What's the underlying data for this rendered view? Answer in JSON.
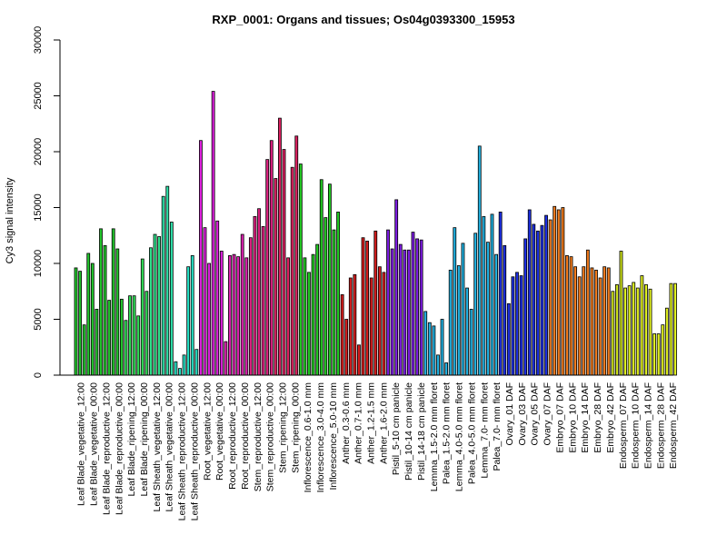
{
  "chart_data": {
    "type": "bar",
    "title": "RXP_0001: Organs and tissues; Os04g0393300_15953",
    "xlabel": "",
    "ylabel": "Cy3 signal intensity",
    "ylim": [
      0,
      30000
    ],
    "yticks": [
      0,
      5000,
      10000,
      15000,
      20000,
      25000,
      30000
    ],
    "grid": false,
    "legend": "none",
    "labeled_categories": [
      "Leaf Blade_vegetative_12:00",
      "Leaf Blade_vegetative_00:00",
      "Leaf Blade_reproductive_12:00",
      "Leaf Blade_reproductive_00:00",
      "Leaf Blade_ripening_12:00",
      "Leaf Blade_ripening_00:00",
      "Leaf Sheath_vegetative_12:00",
      "Leaf Sheath_vegetative_00:00",
      "Leaf Sheath_reproductive_12:00",
      "Leaf Sheath_reproductive_00:00",
      "Root_vegetative_12:00",
      "Root_vegetative_00:00",
      "Root_reproductive_12:00",
      "Root_reproductive_00:00",
      "Stem_reproductive_12:00",
      "Stem_reproductive_00:00",
      "Stem_ripening_12:00",
      "Stem_ripening_00:00",
      "Inflorescence_0.6-1.0 mm",
      "Inflorescence_3.0-4.0 mm",
      "Inflorescence_5.0-10 mm",
      "Anther_0.3-0.6 mm",
      "Anther_0.7-1.0 mm",
      "Anther_1.2-1.5 mm",
      "Anther_1.6-2.0 mm",
      "Pistil_5-10 cm panicle",
      "Pistil_10-14 cm panicle",
      "Pistil_14-18 cm panicle",
      "Lemma_1.5-2.0 mm floret",
      "Palea_1.5-2.0 mm floret",
      "Lemma_4.0-5.0 mm floret",
      "Palea_4.0-5.0 mm floret",
      "Lemma_7.0- mm floret",
      "Palea_7.0- mm floret",
      "Ovary_01 DAF",
      "Ovary_03 DAF",
      "Ovary_05 DAF",
      "Ovary_07 DAF",
      "Embryo_07 DAF",
      "Embryo_10 DAF",
      "Embryo_14 DAF",
      "Embryo_28 DAF",
      "Embryo_42 DAF",
      "Endosperm_07 DAF",
      "Endosperm_10 DAF",
      "Endosperm_14 DAF",
      "Endosperm_28 DAF",
      "Endosperm_42 DAF"
    ],
    "groups": [
      {
        "label": "Leaf Blade_vegetative_12:00",
        "color": "#22c32c",
        "values": [
          9600,
          9300,
          4500
        ]
      },
      {
        "label": "Leaf Blade_vegetative_00:00",
        "color": "#22c32c",
        "values": [
          10900,
          10000,
          5900
        ]
      },
      {
        "label": "Leaf Blade_reproductive_12:00",
        "color": "#22c32c",
        "values": [
          13100,
          11600,
          6700
        ]
      },
      {
        "label": "Leaf Blade_reproductive_00:00",
        "color": "#22c32c",
        "values": [
          13100,
          11300,
          6800
        ]
      },
      {
        "label": "Leaf Blade_ripening_12:00",
        "color": "#30dc56",
        "values": [
          4900,
          7100,
          7100
        ]
      },
      {
        "label": "Leaf Blade_ripening_00:00",
        "color": "#30dc56",
        "values": [
          5300,
          10400,
          7500
        ]
      },
      {
        "label": "Leaf Sheath_vegetative_12:00",
        "color": "#2ee08a",
        "values": [
          11400,
          12600,
          12400
        ]
      },
      {
        "label": "Leaf Sheath_vegetative_00:00",
        "color": "#2ee0a8",
        "values": [
          16000,
          16900,
          13700
        ]
      },
      {
        "label": "Leaf Sheath_reproductive_12:00",
        "color": "#26e0c4",
        "values": [
          1200,
          600,
          1800
        ]
      },
      {
        "label": "Leaf Sheath_reproductive_00:00",
        "color": "#26e0c4",
        "values": [
          9700,
          10700,
          2300
        ]
      },
      {
        "label": "Root_vegetative_12:00",
        "color": "#dc20dc",
        "values": [
          21000,
          13200,
          10000
        ]
      },
      {
        "label": "Root_vegetative_00:00",
        "color": "#dc20dc",
        "values": [
          25400,
          13800,
          11100
        ]
      },
      {
        "label": "Root_reproductive_12:00",
        "color": "#dc20b0",
        "values": [
          3000,
          10700,
          10800
        ]
      },
      {
        "label": "Root_reproductive_00:00",
        "color": "#dc20b0",
        "values": [
          10600,
          12600,
          10500
        ]
      },
      {
        "label": "Stem_reproductive_12:00",
        "color": "#dc2080",
        "values": [
          12300,
          14200,
          14900
        ]
      },
      {
        "label": "Stem_reproductive_00:00",
        "color": "#dc2080",
        "values": [
          13300,
          19300,
          21000
        ]
      },
      {
        "label": "Stem_ripening_12:00",
        "color": "#dc2060",
        "values": [
          17600,
          23000,
          20200
        ]
      },
      {
        "label": "Stem_ripening_00:00",
        "color": "#dc2060",
        "values": [
          10500,
          18600,
          21400
        ]
      },
      {
        "label": "Inflorescence_0.6-1.0 mm",
        "color": "#22c822",
        "values": [
          18900,
          10500,
          9200
        ]
      },
      {
        "label": "Inflorescence_3.0-4.0 mm",
        "color": "#22c822",
        "values": [
          10800,
          11700,
          17500
        ]
      },
      {
        "label": "Inflorescence_5.0-10 mm",
        "color": "#22c822",
        "values": [
          14100,
          17100,
          13000,
          14600
        ]
      },
      {
        "label": "Anther_0.3-0.6 mm",
        "color": "#d41c1c",
        "values": [
          7200,
          5000
        ]
      },
      {
        "label": "Anther_0.7-1.0 mm",
        "color": "#d41c1c",
        "values": [
          8700,
          9000,
          2700
        ]
      },
      {
        "label": "Anther_1.2-1.5 mm",
        "color": "#d41c1c",
        "values": [
          12300,
          12000,
          8700
        ]
      },
      {
        "label": "Anther_1.6-2.0 mm",
        "color": "#d41c1c",
        "values": [
          12900,
          9700,
          9200
        ]
      },
      {
        "label": "Pistil_5-10 cm panicle",
        "color": "#7c1ce0",
        "values": [
          13000,
          11300,
          15700
        ]
      },
      {
        "label": "Pistil_10-14 cm panicle",
        "color": "#7c1ce0",
        "values": [
          11700,
          11200,
          11200
        ]
      },
      {
        "label": "Pistil_14-18 cm panicle",
        "color": "#7c1ce0",
        "values": [
          12800,
          12200,
          12100
        ]
      },
      {
        "label": "Lemma_1.5-2.0 mm floret",
        "color": "#20b0e0",
        "values": [
          5700,
          4700,
          4400
        ]
      },
      {
        "label": "Palea_1.5-2.0 mm floret",
        "color": "#20b0e0",
        "values": [
          1800,
          5000,
          1100
        ]
      },
      {
        "label": "Lemma_4.0-5.0 mm floret",
        "color": "#20b0e0",
        "values": [
          9400,
          13200,
          9800
        ]
      },
      {
        "label": "Palea_4.0-5.0 mm floret",
        "color": "#20b0e0",
        "values": [
          11800,
          7800,
          5900
        ]
      },
      {
        "label": "Lemma_7.0- mm floret",
        "color": "#20b0e0",
        "values": [
          12700,
          20500,
          14200
        ]
      },
      {
        "label": "Palea_7.0- mm floret",
        "color": "#20b0e0",
        "values": [
          11900,
          14400,
          10800
        ]
      },
      {
        "label": "Ovary_01 DAF",
        "color": "#1c2ee0",
        "values": [
          14600,
          11600,
          6400
        ]
      },
      {
        "label": "Ovary_03 DAF",
        "color": "#1c2ee0",
        "values": [
          8800,
          9200,
          8900
        ]
      },
      {
        "label": "Ovary_05 DAF",
        "color": "#1c2ee0",
        "values": [
          12200,
          14800,
          13500
        ]
      },
      {
        "label": "Ovary_07 DAF",
        "color": "#1c2ee0",
        "values": [
          12900,
          13400,
          14300
        ]
      },
      {
        "label": "Embryo_07 DAF",
        "color": "#f07a1c",
        "values": [
          13900,
          15100,
          14800
        ]
      },
      {
        "label": "Embryo_10 DAF",
        "color": "#f07a1c",
        "values": [
          15000,
          10700,
          10600
        ]
      },
      {
        "label": "Embryo_14 DAF",
        "color": "#f07a1c",
        "values": [
          9700,
          8800,
          9700
        ]
      },
      {
        "label": "Embryo_28 DAF",
        "color": "#f07a1c",
        "values": [
          11200,
          9600,
          9400
        ]
      },
      {
        "label": "Embryo_42 DAF",
        "color": "#f07a1c",
        "values": [
          8700,
          9700,
          9600
        ]
      },
      {
        "label": "Endosperm_07 DAF",
        "color": "#cce01c",
        "values": [
          7500,
          8100,
          11100
        ]
      },
      {
        "label": "Endosperm_10 DAF",
        "color": "#e0f020",
        "values": [
          7800,
          8000,
          8300
        ]
      },
      {
        "label": "Endosperm_14 DAF",
        "color": "#e0f020",
        "values": [
          7800,
          8900,
          8100
        ]
      },
      {
        "label": "Endosperm_28 DAF",
        "color": "#e0f020",
        "values": [
          7700,
          3700,
          3700
        ]
      },
      {
        "label": "Endosperm_42 DAF",
        "color": "#e0f020",
        "values": [
          4500,
          6000,
          8200,
          8200
        ]
      }
    ]
  }
}
